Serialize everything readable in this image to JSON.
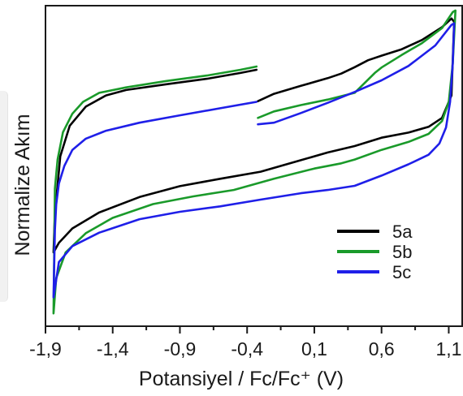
{
  "chart_data": {
    "type": "line",
    "title": "",
    "xlabel": "Potansiyel / Fc/Fc⁺ (V)",
    "ylabel": "Normalize Akım",
    "xlim": [
      -1.9,
      1.2
    ],
    "ylim": [
      0,
      1
    ],
    "x_ticks": [
      -1.9,
      -1.4,
      -0.9,
      -0.4,
      0.1,
      0.6,
      1.1
    ],
    "x_tick_labels": [
      "-1,9",
      "-1,4",
      "-0,9",
      "-0,4",
      "0,1",
      "0,6",
      "1,1"
    ],
    "y_ticks_shown": false,
    "grid": false,
    "legend_position": "bottom-right",
    "series": [
      {
        "name": "5a",
        "color": "#000000",
        "x": [
          -0.33,
          -0.45,
          -0.7,
          -1.0,
          -1.3,
          -1.45,
          -1.6,
          -1.72,
          -1.79,
          -1.83,
          -1.84,
          -1.8,
          -1.7,
          -1.5,
          -1.2,
          -0.9,
          -0.6,
          -0.3,
          0.0,
          0.2,
          0.4,
          0.6,
          0.8,
          0.95,
          1.05,
          1.12,
          1.14,
          1.12,
          1.05,
          0.9,
          0.75,
          0.6,
          0.5,
          0.4,
          0.3,
          0.2,
          0.0,
          -0.2,
          -0.32
        ],
        "y": [
          0.8,
          0.79,
          0.772,
          0.755,
          0.737,
          0.72,
          0.685,
          0.625,
          0.53,
          0.35,
          0.23,
          0.26,
          0.305,
          0.355,
          0.403,
          0.437,
          0.46,
          0.482,
          0.518,
          0.542,
          0.562,
          0.588,
          0.604,
          0.622,
          0.65,
          0.72,
          0.95,
          0.96,
          0.933,
          0.893,
          0.864,
          0.844,
          0.83,
          0.808,
          0.788,
          0.774,
          0.75,
          0.725,
          0.702
        ]
      },
      {
        "name": "5b",
        "color": "#1a9a2a",
        "x": [
          -0.33,
          -0.45,
          -0.7,
          -1.0,
          -1.3,
          -1.5,
          -1.62,
          -1.7,
          -1.77,
          -1.81,
          -1.83,
          -1.84,
          -1.82,
          -1.75,
          -1.6,
          -1.4,
          -1.1,
          -0.8,
          -0.5,
          -0.2,
          0.1,
          0.3,
          0.4,
          0.6,
          0.8,
          0.95,
          1.05,
          1.1,
          1.13,
          1.15,
          1.13,
          1.05,
          0.9,
          0.75,
          0.6,
          0.55,
          0.4,
          0.2,
          0.0,
          -0.2,
          -0.32
        ],
        "y": [
          0.81,
          0.8,
          0.782,
          0.765,
          0.745,
          0.728,
          0.7,
          0.663,
          0.605,
          0.52,
          0.43,
          0.04,
          0.15,
          0.23,
          0.29,
          0.338,
          0.381,
          0.405,
          0.425,
          0.46,
          0.492,
          0.508,
          0.52,
          0.55,
          0.575,
          0.6,
          0.64,
          0.7,
          0.82,
          0.985,
          0.98,
          0.93,
          0.883,
          0.846,
          0.807,
          0.79,
          0.728,
          0.707,
          0.69,
          0.67,
          0.65
        ]
      },
      {
        "name": "5c",
        "color": "#1f1fe8",
        "x": [
          -0.33,
          -0.6,
          -0.9,
          -1.2,
          -1.45,
          -1.6,
          -1.7,
          -1.76,
          -1.8,
          -1.82,
          -1.83,
          -1.84,
          -1.8,
          -1.7,
          -1.5,
          -1.2,
          -0.9,
          -0.6,
          -0.3,
          0.0,
          0.2,
          0.4,
          0.6,
          0.8,
          0.95,
          1.03,
          1.08,
          1.11,
          1.13,
          1.14,
          1.12,
          1.0,
          0.8,
          0.6,
          0.4,
          0.2,
          0.0,
          -0.2,
          -0.32
        ],
        "y": [
          0.7,
          0.68,
          0.658,
          0.635,
          0.61,
          0.585,
          0.55,
          0.5,
          0.445,
          0.38,
          0.3,
          0.09,
          0.2,
          0.25,
          0.292,
          0.334,
          0.357,
          0.374,
          0.395,
          0.415,
          0.425,
          0.438,
          0.47,
          0.505,
          0.535,
          0.57,
          0.62,
          0.7,
          0.82,
          0.945,
          0.94,
          0.876,
          0.812,
          0.767,
          0.731,
          0.697,
          0.665,
          0.635,
          0.63
        ]
      }
    ]
  }
}
